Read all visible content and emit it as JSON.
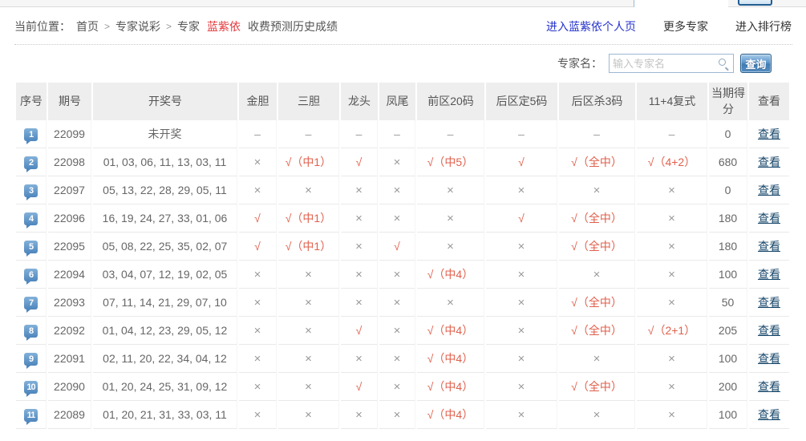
{
  "colors": {
    "hit_red": "#e0604c",
    "miss_gray": "#999999",
    "expert_name_red": "#e4393c",
    "view_link_navy": "#17476b",
    "personal_page_link_blue": "#2533cc",
    "seq_badge_blue": "#4e86bd",
    "query_button_blue": "#3f7cb4",
    "header_bg": "#eeeeee"
  },
  "breadcrumb": {
    "prefix": "当前位置：",
    "items": [
      "首页",
      "专家说彩",
      "专家"
    ],
    "separator": ">",
    "expert_name": "蓝紫依",
    "suffix": "收费预测历史成绩"
  },
  "top_links": {
    "personal_page": "进入蓝紫依个人页",
    "more_experts": "更多专家",
    "ranking": "进入排行榜"
  },
  "search": {
    "label": "专家名：",
    "placeholder": "输入专家名",
    "icon": "search-icon",
    "button_label": "查询"
  },
  "table": {
    "view_label": "查看",
    "columns": [
      "序号",
      "期号",
      "开奖号",
      "金胆",
      "三胆",
      "龙头",
      "凤尾",
      "前区20码",
      "后区定5码",
      "后区杀3码",
      "11+4复式",
      "当期得分",
      "查看"
    ],
    "rows": [
      {
        "seq": "1",
        "period": "22099",
        "numbers": "未开奖",
        "jindan": "–",
        "sandan": "–",
        "longtou": "–",
        "fengwei": "–",
        "front20": "–",
        "back5": "–",
        "backkill3": "–",
        "fushi": "–",
        "score": "0"
      },
      {
        "seq": "2",
        "period": "22098",
        "numbers": "01, 03, 06, 11, 13, 03, 11",
        "jindan": "×",
        "sandan": "√（中1）",
        "longtou": "√",
        "fengwei": "×",
        "front20": "√（中5）",
        "back5": "√",
        "backkill3": "√（全中）",
        "fushi": "√（4+2）",
        "score": "680"
      },
      {
        "seq": "3",
        "period": "22097",
        "numbers": "05, 13, 22, 28, 29, 05, 11",
        "jindan": "×",
        "sandan": "×",
        "longtou": "×",
        "fengwei": "×",
        "front20": "×",
        "back5": "×",
        "backkill3": "×",
        "fushi": "×",
        "score": "0"
      },
      {
        "seq": "4",
        "period": "22096",
        "numbers": "16, 19, 24, 27, 33, 01, 06",
        "jindan": "√",
        "sandan": "√（中1）",
        "longtou": "×",
        "fengwei": "×",
        "front20": "×",
        "back5": "√",
        "backkill3": "√（全中）",
        "fushi": "×",
        "score": "180"
      },
      {
        "seq": "5",
        "period": "22095",
        "numbers": "05, 08, 22, 25, 35, 02, 07",
        "jindan": "√",
        "sandan": "√（中1）",
        "longtou": "×",
        "fengwei": "√",
        "front20": "×",
        "back5": "×",
        "backkill3": "√（全中）",
        "fushi": "×",
        "score": "180"
      },
      {
        "seq": "6",
        "period": "22094",
        "numbers": "03, 04, 07, 12, 19, 02, 05",
        "jindan": "×",
        "sandan": "×",
        "longtou": "×",
        "fengwei": "×",
        "front20": "√（中4）",
        "back5": "×",
        "backkill3": "×",
        "fushi": "×",
        "score": "100"
      },
      {
        "seq": "7",
        "period": "22093",
        "numbers": "07, 11, 14, 21, 29, 07, 10",
        "jindan": "×",
        "sandan": "×",
        "longtou": "×",
        "fengwei": "×",
        "front20": "×",
        "back5": "×",
        "backkill3": "√（全中）",
        "fushi": "×",
        "score": "50"
      },
      {
        "seq": "8",
        "period": "22092",
        "numbers": "01, 04, 12, 23, 29, 05, 12",
        "jindan": "×",
        "sandan": "×",
        "longtou": "√",
        "fengwei": "×",
        "front20": "√（中4）",
        "back5": "×",
        "backkill3": "√（全中）",
        "fushi": "√（2+1）",
        "score": "205"
      },
      {
        "seq": "9",
        "period": "22091",
        "numbers": "02, 11, 20, 22, 34, 04, 12",
        "jindan": "×",
        "sandan": "×",
        "longtou": "×",
        "fengwei": "×",
        "front20": "√（中4）",
        "back5": "×",
        "backkill3": "×",
        "fushi": "×",
        "score": "100"
      },
      {
        "seq": "10",
        "period": "22090",
        "numbers": "01, 20, 24, 25, 31, 09, 12",
        "jindan": "×",
        "sandan": "×",
        "longtou": "√",
        "fengwei": "×",
        "front20": "√（中4）",
        "back5": "×",
        "backkill3": "√（全中）",
        "fushi": "×",
        "score": "200"
      },
      {
        "seq": "11",
        "period": "22089",
        "numbers": "01, 20, 21, 31, 33, 03, 11",
        "jindan": "×",
        "sandan": "×",
        "longtou": "×",
        "fengwei": "×",
        "front20": "√（中4）",
        "back5": "×",
        "backkill3": "×",
        "fushi": "×",
        "score": "100"
      }
    ]
  }
}
